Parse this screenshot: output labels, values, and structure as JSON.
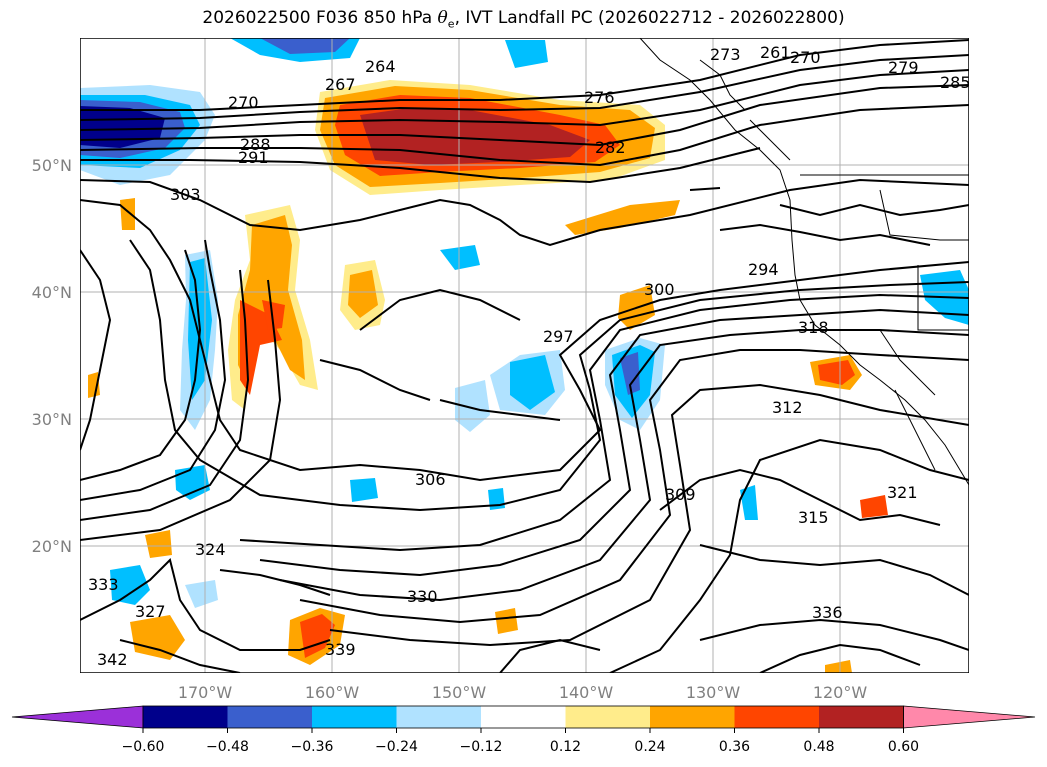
{
  "title": {
    "prefix": "2026022500 F036 850 hPa ",
    "theta": "θ",
    "theta_sub": "e",
    "suffix": ", IVT Landfall PC (2026022712 - 2026022800)"
  },
  "map": {
    "lat_labels": [
      "50°N",
      "40°N",
      "30°N",
      "20°N"
    ],
    "lon_labels": [
      "170°W",
      "160°W",
      "150°W",
      "140°W",
      "130°W",
      "120°W"
    ]
  },
  "contour_labels": [
    "270",
    "273",
    "267",
    "264",
    "279",
    "276",
    "282",
    "285",
    "288",
    "291",
    "294",
    "297",
    "300",
    "303",
    "306",
    "309",
    "312",
    "315",
    "318",
    "321",
    "324",
    "327",
    "330",
    "333",
    "336",
    "339",
    "342",
    "261",
    "270"
  ],
  "colorbar": {
    "ticks": [
      "−0.60",
      "−0.48",
      "−0.36",
      "−0.24",
      "−0.12",
      "0.12",
      "0.24",
      "0.36",
      "0.48",
      "0.60"
    ],
    "colors": [
      "#9b30d9",
      "#00008b",
      "#3a5fcd",
      "#00bfff",
      "#b0e2ff",
      "#ffffff",
      "#ffec8b",
      "#ffa500",
      "#ff4500",
      "#b22222",
      "#ff88aa"
    ]
  }
}
